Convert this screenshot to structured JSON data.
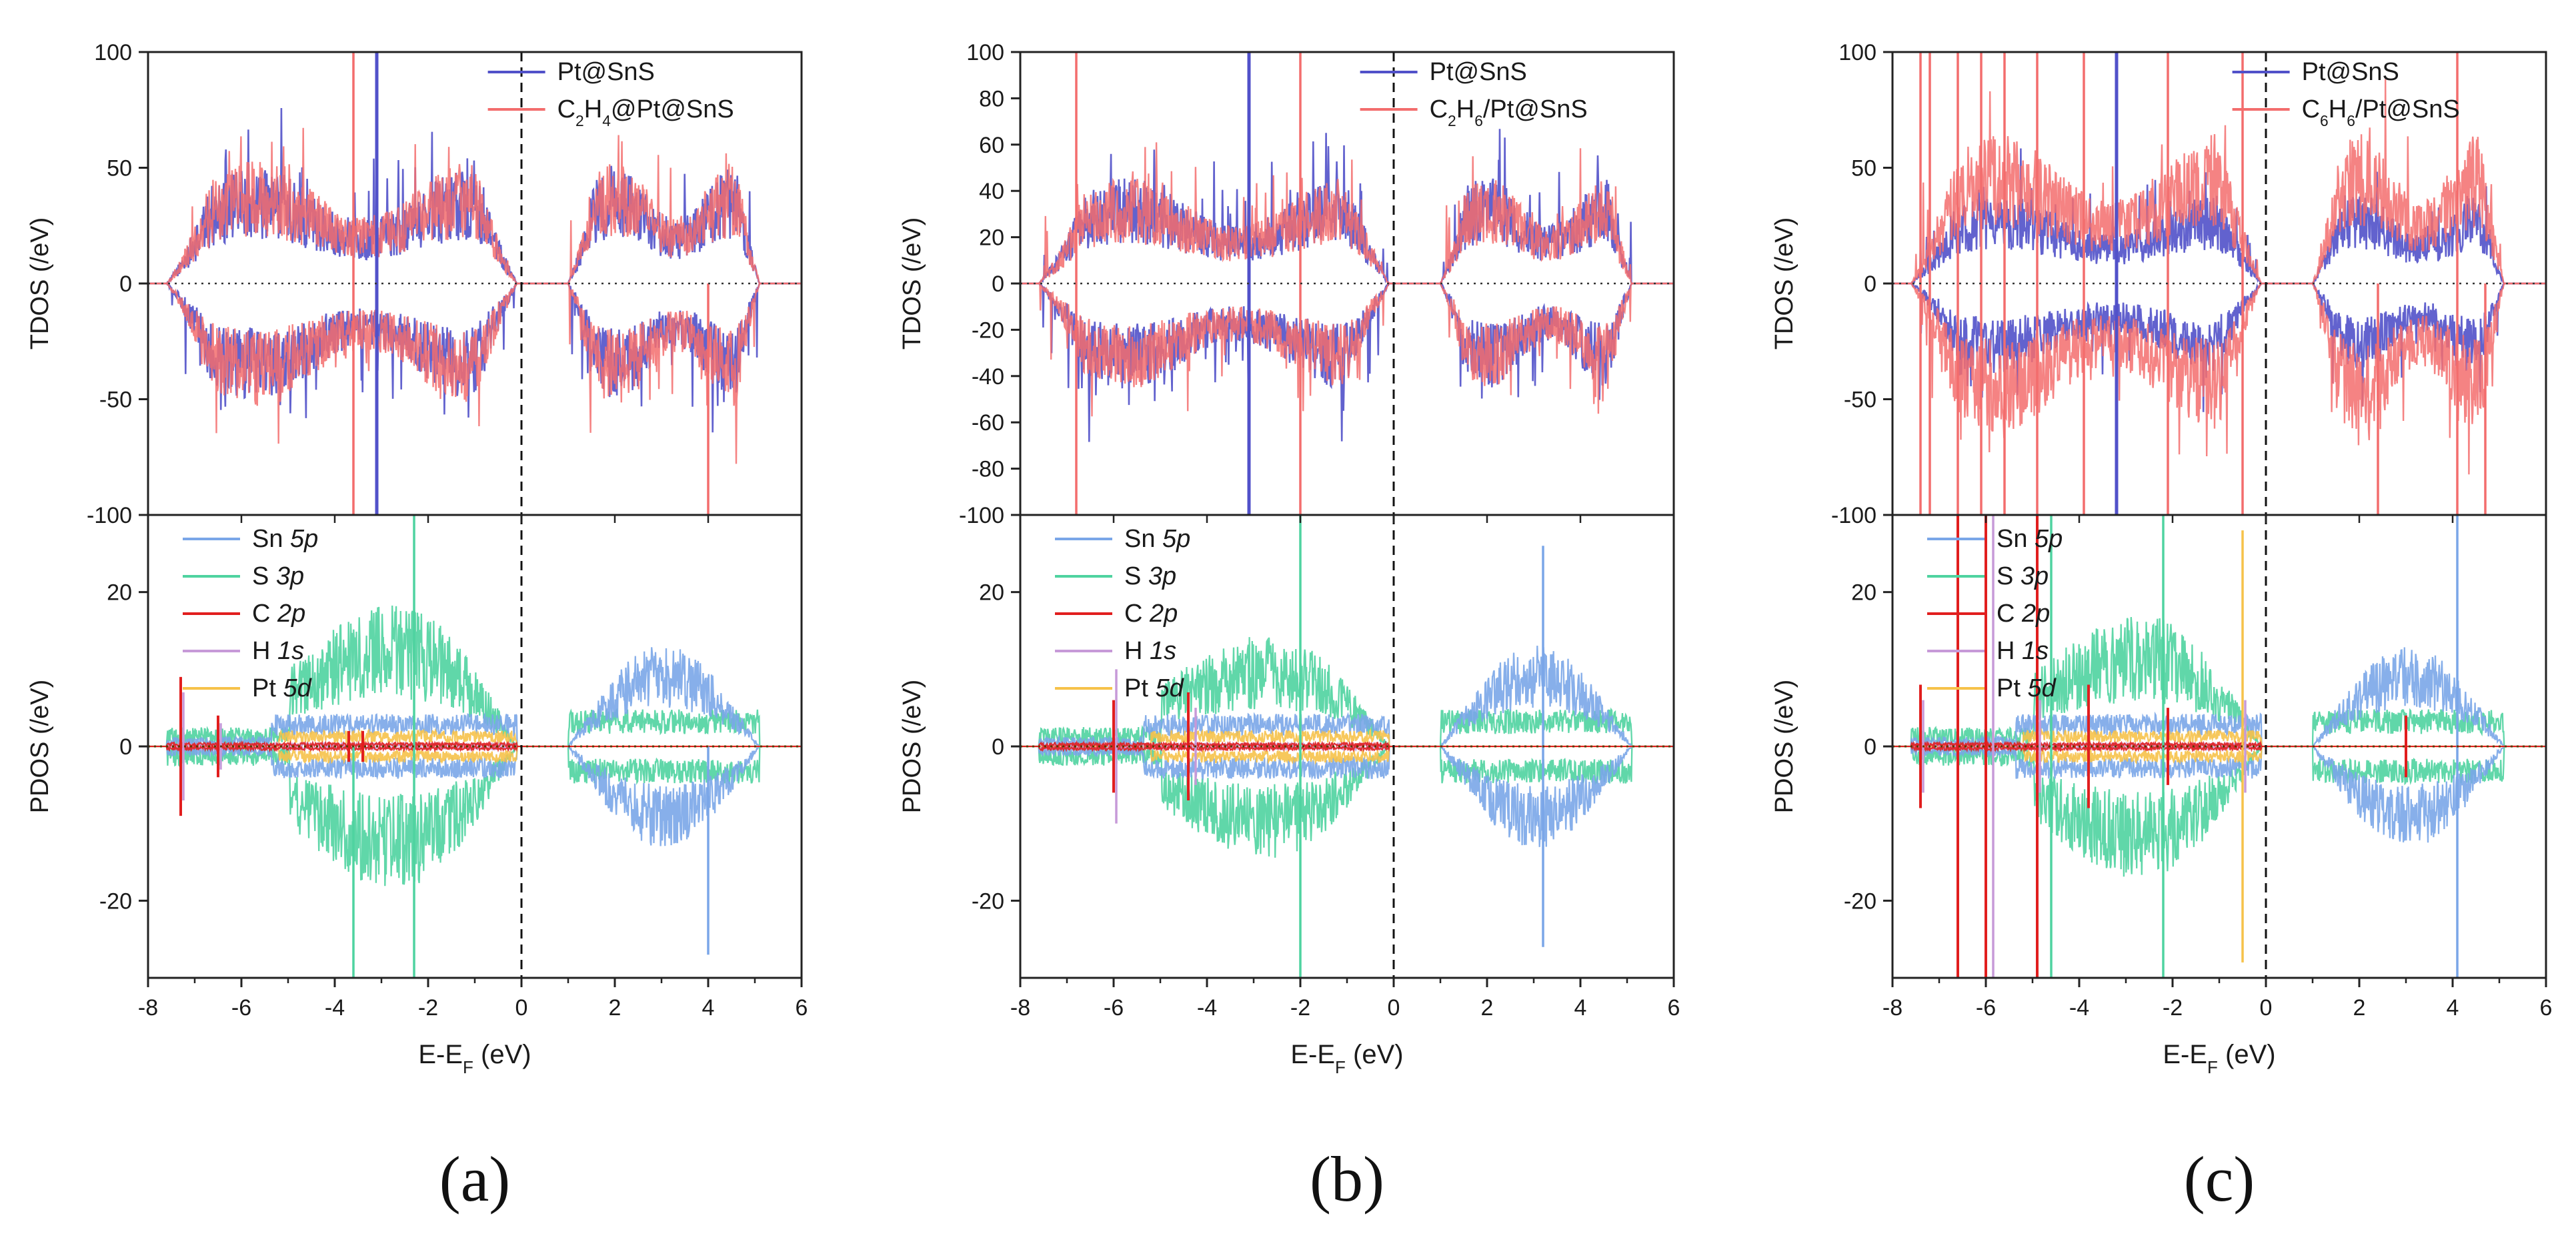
{
  "figure": {
    "colors": {
      "pristine": "#5151c9",
      "adsorbed": "#f36d6d",
      "sn5p": "#7aa6e8",
      "s3p": "#4fd3a0",
      "c2p": "#e11e1e",
      "h1s": "#c79ad8",
      "pt5d": "#f6c24a",
      "axis": "#222222"
    }
  },
  "chart_data": [
    {
      "type": "line",
      "panel_label": "(a)",
      "xlabel": "E-E_F (eV)",
      "xlabel_main": "E-E",
      "xlabel_sub": "F",
      "xlabel_unit": "(eV)",
      "xlim": [
        -8,
        6
      ],
      "xticks": [
        "-8",
        "-6",
        "-4",
        "-2",
        "0",
        "2",
        "4",
        "6"
      ],
      "fermi_level": 0,
      "tdos": {
        "ylabel": "TDOS (/eV)",
        "ylim": [
          -100,
          100
        ],
        "yticks": [
          "100",
          "50",
          "0",
          "-50",
          "-100"
        ],
        "legend": [
          "Pt@SnS",
          "C2H4@Pt@SnS"
        ],
        "legend_parts": [
          [
            {
              "t": "Pt@SnS"
            }
          ],
          [
            {
              "t": "C"
            },
            {
              "t": "2",
              "sub": true
            },
            {
              "t": "H"
            },
            {
              "t": "4",
              "sub": true
            },
            {
              "t": "@Pt@SnS"
            }
          ]
        ],
        "bands": [
          [
            -7.6,
            -0.1
          ],
          [
            1.0,
            5.1
          ]
        ],
        "envelope": 42,
        "amplitude": {
          "pristine": 1.0,
          "adsorbed": 1.05
        },
        "spikes": [
          {
            "series": 0,
            "x": -3.1,
            "y": 100
          },
          {
            "series": 0,
            "x": -3.1,
            "y": -100
          },
          {
            "series": 1,
            "x": -3.6,
            "y": 100
          },
          {
            "series": 1,
            "x": -3.6,
            "y": -100
          },
          {
            "series": 1,
            "x": 4.0,
            "y": -100
          }
        ]
      },
      "pdos": {
        "ylabel": "PDOS (/eV)",
        "ylim": [
          -30,
          30
        ],
        "yticks": [
          "20",
          "0",
          "-20"
        ],
        "legend": [
          "Sn 5p",
          "S 3p",
          "C 2p",
          "H 1s",
          "Pt 5d"
        ],
        "legend_parts": [
          [
            {
              "t": "Sn "
            },
            {
              "t": "5p",
              "italic": true
            }
          ],
          [
            {
              "t": "S "
            },
            {
              "t": "3p",
              "italic": true
            }
          ],
          [
            {
              "t": "C "
            },
            {
              "t": "2p",
              "italic": true
            }
          ],
          [
            {
              "t": "H "
            },
            {
              "t": "1s",
              "italic": true
            }
          ],
          [
            {
              "t": "Pt "
            },
            {
              "t": "5d",
              "italic": true
            }
          ]
        ],
        "s_peak": 28,
        "c_spikes": [
          [
            -7.3,
            9
          ],
          [
            -6.5,
            4
          ],
          [
            -3.7,
            2
          ],
          [
            -3.4,
            2
          ]
        ],
        "h_spikes": [
          [
            -7.3,
            7
          ],
          [
            -6.5,
            3
          ]
        ],
        "spikes": [
          {
            "orbital": "s3p",
            "x": -3.6,
            "y": -30
          },
          {
            "orbital": "s3p",
            "x": -2.3,
            "y": 30
          },
          {
            "orbital": "s3p",
            "x": -2.3,
            "y": -30
          },
          {
            "orbital": "sn5p",
            "x": 4.0,
            "y": -27
          }
        ]
      }
    },
    {
      "type": "line",
      "panel_label": "(b)",
      "xlabel": "E-E_F (eV)",
      "xlabel_main": "E-E",
      "xlabel_sub": "F",
      "xlabel_unit": "(eV)",
      "xlim": [
        -8,
        6
      ],
      "xticks": [
        "-8",
        "-6",
        "-4",
        "-2",
        "0",
        "2",
        "4",
        "6"
      ],
      "fermi_level": 0,
      "tdos": {
        "ylabel": "TDOS (/eV)",
        "ylim": [
          -100,
          100
        ],
        "yticks": [
          "100",
          "80",
          "60",
          "40",
          "20",
          "0",
          "-20",
          "-40",
          "-60",
          "-80",
          "-100"
        ],
        "legend": [
          "Pt@SnS",
          "C2H6/Pt@SnS"
        ],
        "legend_parts": [
          [
            {
              "t": "Pt@SnS"
            }
          ],
          [
            {
              "t": "C"
            },
            {
              "t": "2",
              "sub": true
            },
            {
              "t": "H"
            },
            {
              "t": "6",
              "sub": true
            },
            {
              "t": "/Pt@SnS"
            }
          ]
        ],
        "bands": [
          [
            -7.6,
            -0.1
          ],
          [
            1.0,
            5.1
          ]
        ],
        "envelope": 38,
        "amplitude": {
          "pristine": 1.0,
          "adsorbed": 1.0
        },
        "spikes": [
          {
            "series": 1,
            "x": -6.8,
            "y": 100
          },
          {
            "series": 1,
            "x": -6.8,
            "y": -100
          },
          {
            "series": 0,
            "x": -3.1,
            "y": 100
          },
          {
            "series": 0,
            "x": -3.1,
            "y": -100
          },
          {
            "series": 1,
            "x": -2.0,
            "y": 100
          },
          {
            "series": 1,
            "x": -2.0,
            "y": -100
          }
        ]
      },
      "pdos": {
        "ylabel": "PDOS (/eV)",
        "ylim": [
          -30,
          30
        ],
        "yticks": [
          "20",
          "0",
          "-20"
        ],
        "legend": [
          "Sn 5p",
          "S 3p",
          "C 2p",
          "H 1s",
          "Pt 5d"
        ],
        "legend_parts": [
          [
            {
              "t": "Sn "
            },
            {
              "t": "5p",
              "italic": true
            }
          ],
          [
            {
              "t": "S "
            },
            {
              "t": "3p",
              "italic": true
            }
          ],
          [
            {
              "t": "C "
            },
            {
              "t": "2p",
              "italic": true
            }
          ],
          [
            {
              "t": "H "
            },
            {
              "t": "1s",
              "italic": true
            }
          ],
          [
            {
              "t": "Pt "
            },
            {
              "t": "5d",
              "italic": true
            }
          ]
        ],
        "s_peak": 22,
        "c_spikes": [
          [
            -6.0,
            6
          ],
          [
            -4.4,
            7
          ]
        ],
        "h_spikes": [
          [
            -6.0,
            10
          ],
          [
            -4.3,
            5
          ]
        ],
        "spikes": [
          {
            "orbital": "s3p",
            "x": -2.0,
            "y": 30
          },
          {
            "orbital": "s3p",
            "x": -2.0,
            "y": -30
          },
          {
            "orbital": "sn5p",
            "x": 3.2,
            "y": 26
          },
          {
            "orbital": "sn5p",
            "x": 3.2,
            "y": -26
          }
        ]
      }
    },
    {
      "type": "line",
      "panel_label": "(c)",
      "xlabel": "E-E_F (eV)",
      "xlabel_main": "E-E",
      "xlabel_sub": "F",
      "xlabel_unit": "(eV)",
      "xlim": [
        -8,
        6
      ],
      "xticks": [
        "-8",
        "-6",
        "-4",
        "-2",
        "0",
        "2",
        "4",
        "6"
      ],
      "fermi_level": 0,
      "tdos": {
        "ylabel": "TDOS (/eV)",
        "ylim": [
          -100,
          100
        ],
        "yticks": [
          "100",
          "50",
          "0",
          "-50",
          "-100"
        ],
        "legend": [
          "Pt@SnS",
          "C6H6/Pt@SnS"
        ],
        "legend_parts": [
          [
            {
              "t": "Pt@SnS"
            }
          ],
          [
            {
              "t": "C"
            },
            {
              "t": "6",
              "sub": true
            },
            {
              "t": "H"
            },
            {
              "t": "6",
              "sub": true
            },
            {
              "t": "/Pt@SnS"
            }
          ]
        ],
        "bands": [
          [
            -7.6,
            -0.1
          ],
          [
            1.0,
            5.1
          ]
        ],
        "envelope": 40,
        "amplitude": {
          "pristine": 0.8,
          "adsorbed": 1.35
        },
        "spikes": [
          {
            "series": 1,
            "x": -7.4,
            "y": 100
          },
          {
            "series": 1,
            "x": -7.4,
            "y": -100
          },
          {
            "series": 1,
            "x": -7.2,
            "y": 100
          },
          {
            "series": 1,
            "x": -7.2,
            "y": -100
          },
          {
            "series": 1,
            "x": -6.6,
            "y": 100
          },
          {
            "series": 1,
            "x": -6.6,
            "y": -100
          },
          {
            "series": 1,
            "x": -6.1,
            "y": 100
          },
          {
            "series": 1,
            "x": -6.1,
            "y": -100
          },
          {
            "series": 1,
            "x": -5.6,
            "y": 100
          },
          {
            "series": 1,
            "x": -5.6,
            "y": -100
          },
          {
            "series": 1,
            "x": -4.9,
            "y": 100
          },
          {
            "series": 1,
            "x": -4.9,
            "y": -100
          },
          {
            "series": 1,
            "x": -3.9,
            "y": 100
          },
          {
            "series": 1,
            "x": -3.9,
            "y": -100
          },
          {
            "series": 0,
            "x": -3.2,
            "y": 100
          },
          {
            "series": 0,
            "x": -3.2,
            "y": -100
          },
          {
            "series": 1,
            "x": -2.1,
            "y": 100
          },
          {
            "series": 1,
            "x": -2.1,
            "y": -100
          },
          {
            "series": 1,
            "x": -0.5,
            "y": 100
          },
          {
            "series": 1,
            "x": -0.5,
            "y": -100
          },
          {
            "series": 1,
            "x": 2.4,
            "y": -100
          },
          {
            "series": 1,
            "x": 4.1,
            "y": 100
          },
          {
            "series": 1,
            "x": 4.1,
            "y": -100
          },
          {
            "series": 1,
            "x": 4.7,
            "y": -100
          }
        ]
      },
      "pdos": {
        "ylabel": "PDOS (/eV)",
        "ylim": [
          -30,
          30
        ],
        "yticks": [
          "20",
          "0",
          "-20"
        ],
        "legend": [
          "Sn 5p",
          "S 3p",
          "C 2p",
          "H 1s",
          "Pt 5d"
        ],
        "legend_parts": [
          [
            {
              "t": "Sn "
            },
            {
              "t": "5p",
              "italic": true
            }
          ],
          [
            {
              "t": "S "
            },
            {
              "t": "3p",
              "italic": true
            }
          ],
          [
            {
              "t": "C "
            },
            {
              "t": "2p",
              "italic": true
            }
          ],
          [
            {
              "t": "H "
            },
            {
              "t": "1s",
              "italic": true
            }
          ],
          [
            {
              "t": "Pt "
            },
            {
              "t": "5d",
              "italic": true
            }
          ]
        ],
        "s_peak": 26,
        "c_spikes": [
          [
            -7.4,
            8
          ],
          [
            -6.6,
            30
          ],
          [
            -6.0,
            30
          ],
          [
            -4.9,
            30
          ],
          [
            -3.8,
            8
          ],
          [
            -2.1,
            5
          ],
          [
            3.0,
            4
          ]
        ],
        "h_spikes": [
          [
            -7.4,
            6
          ],
          [
            -5.9,
            30
          ],
          [
            -4.9,
            6
          ],
          [
            -0.5,
            6
          ]
        ],
        "spikes": [
          {
            "orbital": "s3p",
            "x": -4.6,
            "y": 30
          },
          {
            "orbital": "s3p",
            "x": -4.6,
            "y": -30
          },
          {
            "orbital": "s3p",
            "x": -2.2,
            "y": 30
          },
          {
            "orbital": "s3p",
            "x": -2.2,
            "y": -30
          },
          {
            "orbital": "pt5d",
            "x": -0.5,
            "y": 28
          },
          {
            "orbital": "pt5d",
            "x": -0.5,
            "y": -28
          },
          {
            "orbital": "sn5p",
            "x": 4.1,
            "y": 30
          },
          {
            "orbital": "sn5p",
            "x": 4.1,
            "y": -30
          }
        ]
      }
    }
  ]
}
